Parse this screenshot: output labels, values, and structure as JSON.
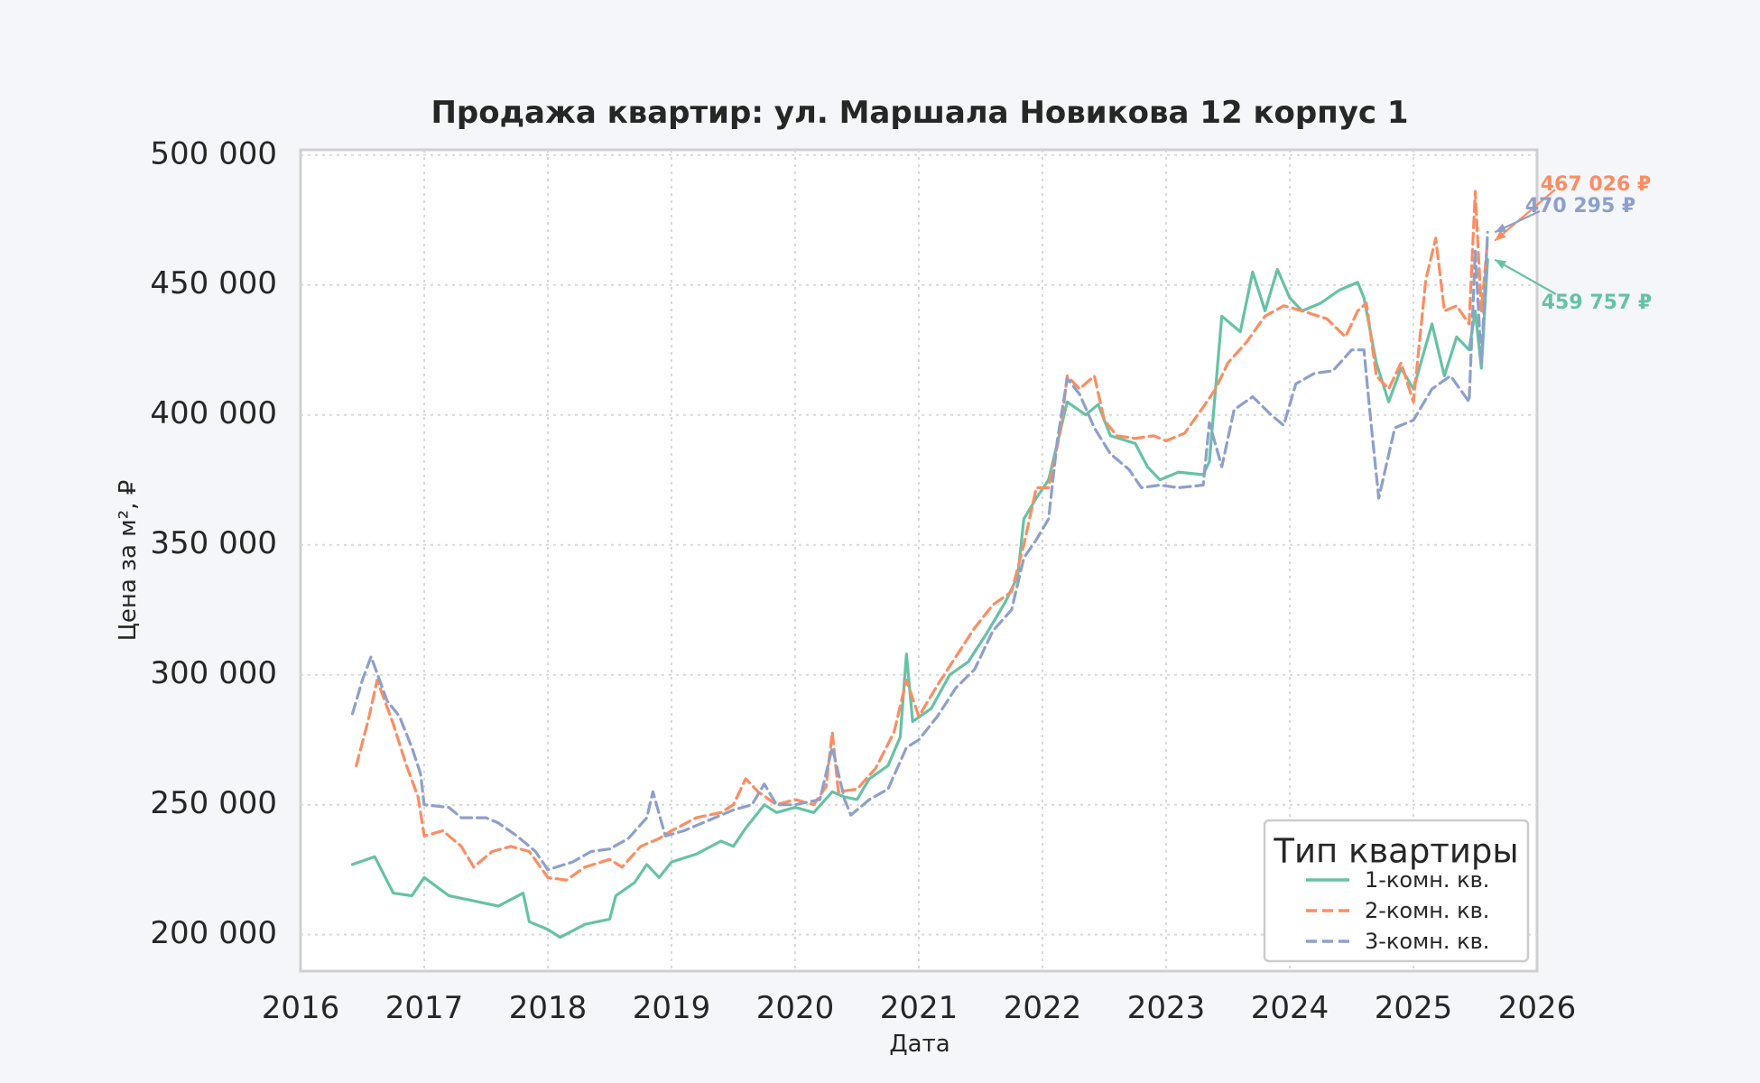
{
  "chart_data": {
    "type": "line",
    "title": "Продажа квартир: ул. Маршала Новикова 12 корпус 1",
    "xlabel": "Дата",
    "ylabel": "Цена за м², ₽",
    "xlim": [
      2016,
      2026
    ],
    "ylim": [
      186000,
      502000
    ],
    "x_ticks": [
      "2016",
      "2017",
      "2018",
      "2019",
      "2020",
      "2021",
      "2022",
      "2023",
      "2024",
      "2025",
      "2026"
    ],
    "y_ticks": [
      {
        "value": 200000,
        "label": "200 000"
      },
      {
        "value": 250000,
        "label": "250 000"
      },
      {
        "value": 300000,
        "label": "300 000"
      },
      {
        "value": 350000,
        "label": "350 000"
      },
      {
        "value": 400000,
        "label": "400 000"
      },
      {
        "value": 450000,
        "label": "450 000"
      },
      {
        "value": 500000,
        "label": "500 000"
      }
    ],
    "grid": true,
    "legend": {
      "title": "Тип квартиры",
      "position": "bottom-right"
    },
    "series": [
      {
        "name": "1-комн. кв.",
        "color": "#66c2a5",
        "dash": "solid",
        "points": [
          [
            2016.42,
            227000
          ],
          [
            2016.6,
            230000
          ],
          [
            2016.75,
            216000
          ],
          [
            2016.9,
            215000
          ],
          [
            2017.0,
            222000
          ],
          [
            2017.2,
            215000
          ],
          [
            2017.4,
            213000
          ],
          [
            2017.6,
            211000
          ],
          [
            2017.8,
            216000
          ],
          [
            2017.85,
            205000
          ],
          [
            2018.0,
            202000
          ],
          [
            2018.1,
            199000
          ],
          [
            2018.3,
            204000
          ],
          [
            2018.5,
            206000
          ],
          [
            2018.55,
            215000
          ],
          [
            2018.7,
            220000
          ],
          [
            2018.8,
            227000
          ],
          [
            2018.9,
            222000
          ],
          [
            2019.0,
            228000
          ],
          [
            2019.2,
            231000
          ],
          [
            2019.4,
            236000
          ],
          [
            2019.5,
            234000
          ],
          [
            2019.6,
            241000
          ],
          [
            2019.75,
            250000
          ],
          [
            2019.85,
            247000
          ],
          [
            2020.0,
            249000
          ],
          [
            2020.15,
            247000
          ],
          [
            2020.3,
            255000
          ],
          [
            2020.4,
            253000
          ],
          [
            2020.5,
            252000
          ],
          [
            2020.6,
            260000
          ],
          [
            2020.75,
            265000
          ],
          [
            2020.85,
            276000
          ],
          [
            2020.9,
            308000
          ],
          [
            2020.95,
            282000
          ],
          [
            2021.1,
            287000
          ],
          [
            2021.25,
            300000
          ],
          [
            2021.4,
            305000
          ],
          [
            2021.55,
            316000
          ],
          [
            2021.7,
            328000
          ],
          [
            2021.8,
            338000
          ],
          [
            2021.85,
            360000
          ],
          [
            2021.95,
            368000
          ],
          [
            2022.05,
            375000
          ],
          [
            2022.2,
            405000
          ],
          [
            2022.35,
            400000
          ],
          [
            2022.45,
            404000
          ],
          [
            2022.55,
            392000
          ],
          [
            2022.75,
            389000
          ],
          [
            2022.85,
            380000
          ],
          [
            2022.95,
            375000
          ],
          [
            2023.1,
            378000
          ],
          [
            2023.3,
            377000
          ],
          [
            2023.35,
            382000
          ],
          [
            2023.4,
            410000
          ],
          [
            2023.45,
            438000
          ],
          [
            2023.6,
            432000
          ],
          [
            2023.7,
            455000
          ],
          [
            2023.8,
            440000
          ],
          [
            2023.9,
            456000
          ],
          [
            2024.0,
            445000
          ],
          [
            2024.1,
            440000
          ],
          [
            2024.25,
            443000
          ],
          [
            2024.4,
            448000
          ],
          [
            2024.55,
            451000
          ],
          [
            2024.6,
            445000
          ],
          [
            2024.7,
            420000
          ],
          [
            2024.8,
            405000
          ],
          [
            2024.9,
            418000
          ],
          [
            2025.0,
            410000
          ],
          [
            2025.15,
            435000
          ],
          [
            2025.25,
            415000
          ],
          [
            2025.35,
            430000
          ],
          [
            2025.45,
            425000
          ],
          [
            2025.5,
            440000
          ],
          [
            2025.55,
            418000
          ],
          [
            2025.6,
            459757
          ]
        ]
      },
      {
        "name": "2-комн. кв.",
        "color": "#fc8d62",
        "dash": "dashed",
        "points": [
          [
            2016.45,
            265000
          ],
          [
            2016.55,
            283000
          ],
          [
            2016.62,
            298000
          ],
          [
            2016.75,
            281000
          ],
          [
            2016.85,
            266000
          ],
          [
            2016.95,
            253000
          ],
          [
            2017.0,
            238000
          ],
          [
            2017.15,
            240000
          ],
          [
            2017.3,
            234000
          ],
          [
            2017.4,
            226000
          ],
          [
            2017.55,
            232000
          ],
          [
            2017.7,
            234000
          ],
          [
            2017.85,
            232000
          ],
          [
            2018.0,
            222000
          ],
          [
            2018.15,
            221000
          ],
          [
            2018.3,
            226000
          ],
          [
            2018.5,
            229000
          ],
          [
            2018.6,
            226000
          ],
          [
            2018.75,
            234000
          ],
          [
            2018.9,
            237000
          ],
          [
            2019.0,
            240000
          ],
          [
            2019.2,
            245000
          ],
          [
            2019.4,
            247000
          ],
          [
            2019.5,
            250000
          ],
          [
            2019.6,
            260000
          ],
          [
            2019.7,
            255000
          ],
          [
            2019.85,
            250000
          ],
          [
            2020.0,
            252000
          ],
          [
            2020.15,
            250000
          ],
          [
            2020.25,
            257000
          ],
          [
            2020.3,
            278000
          ],
          [
            2020.35,
            255000
          ],
          [
            2020.5,
            256000
          ],
          [
            2020.65,
            264000
          ],
          [
            2020.8,
            278000
          ],
          [
            2020.9,
            298000
          ],
          [
            2021.0,
            284000
          ],
          [
            2021.15,
            296000
          ],
          [
            2021.3,
            307000
          ],
          [
            2021.45,
            318000
          ],
          [
            2021.6,
            327000
          ],
          [
            2021.75,
            332000
          ],
          [
            2021.85,
            350000
          ],
          [
            2021.95,
            372000
          ],
          [
            2022.05,
            372000
          ],
          [
            2022.15,
            395000
          ],
          [
            2022.2,
            415000
          ],
          [
            2022.3,
            410000
          ],
          [
            2022.42,
            415000
          ],
          [
            2022.5,
            398000
          ],
          [
            2022.6,
            392000
          ],
          [
            2022.75,
            391000
          ],
          [
            2022.9,
            392000
          ],
          [
            2023.0,
            390000
          ],
          [
            2023.15,
            393000
          ],
          [
            2023.3,
            403000
          ],
          [
            2023.4,
            410000
          ],
          [
            2023.5,
            420000
          ],
          [
            2023.65,
            428000
          ],
          [
            2023.8,
            438000
          ],
          [
            2023.95,
            442000
          ],
          [
            2024.1,
            440000
          ],
          [
            2024.3,
            437000
          ],
          [
            2024.45,
            430000
          ],
          [
            2024.55,
            440000
          ],
          [
            2024.62,
            443000
          ],
          [
            2024.7,
            415000
          ],
          [
            2024.8,
            410000
          ],
          [
            2024.9,
            420000
          ],
          [
            2025.0,
            405000
          ],
          [
            2025.1,
            452000
          ],
          [
            2025.18,
            468000
          ],
          [
            2025.25,
            440000
          ],
          [
            2025.35,
            442000
          ],
          [
            2025.45,
            435000
          ],
          [
            2025.5,
            486000
          ],
          [
            2025.55,
            440000
          ],
          [
            2025.6,
            467026
          ]
        ]
      },
      {
        "name": "3-комн. кв.",
        "color": "#8da0cb",
        "dash": "dashed",
        "points": [
          [
            2016.42,
            285000
          ],
          [
            2016.5,
            298000
          ],
          [
            2016.57,
            307000
          ],
          [
            2016.7,
            290000
          ],
          [
            2016.8,
            284000
          ],
          [
            2016.9,
            272000
          ],
          [
            2016.97,
            262000
          ],
          [
            2017.0,
            250000
          ],
          [
            2017.2,
            249000
          ],
          [
            2017.3,
            245000
          ],
          [
            2017.5,
            245000
          ],
          [
            2017.6,
            243000
          ],
          [
            2017.75,
            238000
          ],
          [
            2017.9,
            232000
          ],
          [
            2018.0,
            225000
          ],
          [
            2018.2,
            228000
          ],
          [
            2018.35,
            232000
          ],
          [
            2018.5,
            233000
          ],
          [
            2018.65,
            237000
          ],
          [
            2018.8,
            245000
          ],
          [
            2018.85,
            255000
          ],
          [
            2018.95,
            238000
          ],
          [
            2019.1,
            240000
          ],
          [
            2019.3,
            244000
          ],
          [
            2019.5,
            248000
          ],
          [
            2019.65,
            250000
          ],
          [
            2019.75,
            258000
          ],
          [
            2019.85,
            250000
          ],
          [
            2020.0,
            250000
          ],
          [
            2020.2,
            252000
          ],
          [
            2020.3,
            272000
          ],
          [
            2020.4,
            252000
          ],
          [
            2020.45,
            246000
          ],
          [
            2020.6,
            252000
          ],
          [
            2020.75,
            256000
          ],
          [
            2020.9,
            272000
          ],
          [
            2021.0,
            275000
          ],
          [
            2021.15,
            284000
          ],
          [
            2021.3,
            295000
          ],
          [
            2021.45,
            302000
          ],
          [
            2021.6,
            317000
          ],
          [
            2021.75,
            325000
          ],
          [
            2021.85,
            345000
          ],
          [
            2021.95,
            352000
          ],
          [
            2022.05,
            360000
          ],
          [
            2022.12,
            390000
          ],
          [
            2022.2,
            414000
          ],
          [
            2022.3,
            408000
          ],
          [
            2022.42,
            395000
          ],
          [
            2022.55,
            385000
          ],
          [
            2022.7,
            379000
          ],
          [
            2022.8,
            372000
          ],
          [
            2022.95,
            373000
          ],
          [
            2023.1,
            372000
          ],
          [
            2023.3,
            373000
          ],
          [
            2023.35,
            397000
          ],
          [
            2023.45,
            380000
          ],
          [
            2023.55,
            402000
          ],
          [
            2023.7,
            407000
          ],
          [
            2023.85,
            400000
          ],
          [
            2023.95,
            396000
          ],
          [
            2024.05,
            412000
          ],
          [
            2024.2,
            416000
          ],
          [
            2024.35,
            417000
          ],
          [
            2024.5,
            425000
          ],
          [
            2024.6,
            425000
          ],
          [
            2024.65,
            400000
          ],
          [
            2024.72,
            368000
          ],
          [
            2024.85,
            395000
          ],
          [
            2025.0,
            398000
          ],
          [
            2025.15,
            410000
          ],
          [
            2025.3,
            415000
          ],
          [
            2025.45,
            405000
          ],
          [
            2025.5,
            463000
          ],
          [
            2025.55,
            420000
          ],
          [
            2025.6,
            470295
          ]
        ]
      }
    ],
    "annotations": [
      {
        "text": "467 026 ₽",
        "series": 1,
        "color": "#fc8d62"
      },
      {
        "text": "470 295 ₽",
        "series": 2,
        "color": "#8da0cb"
      },
      {
        "text": "459 757 ₽",
        "series": 0,
        "color": "#66c2a5"
      }
    ]
  }
}
